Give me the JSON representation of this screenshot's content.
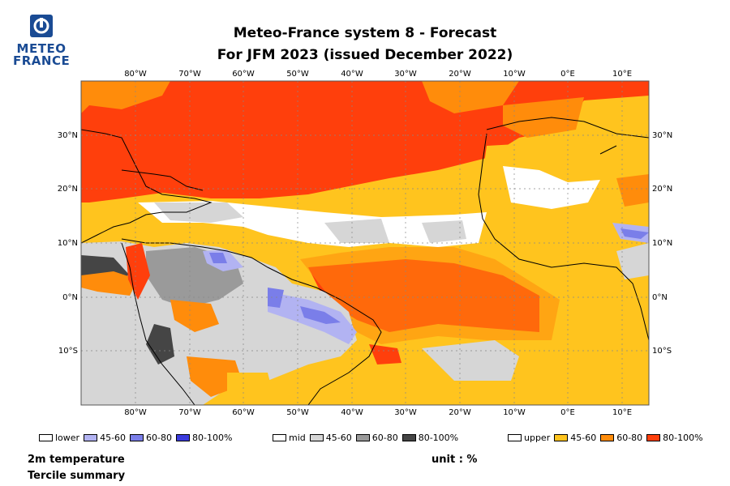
{
  "logo": {
    "line1": "METEO",
    "line2": "FRANCE",
    "icon": "meteo-france-logo-icon"
  },
  "title": {
    "line1": "Meteo-France system 8  -  Forecast",
    "line2": "For JFM 2023      (issued December 2022)"
  },
  "map": {
    "lon_labels": [
      "80°W",
      "70°W",
      "60°W",
      "50°W",
      "40°W",
      "30°W",
      "20°W",
      "10°W",
      "0°E",
      "10°E"
    ],
    "lat_labels": [
      "30°N",
      "20°N",
      "10°N",
      "0°N",
      "10°S"
    ],
    "colors": {
      "white": "#ffffff",
      "lower_45_60": "#b2b3f2",
      "lower_60_80": "#7a7ee9",
      "lower_80_100": "#3b3bdd",
      "mid_45_60": "#d6d6d6",
      "mid_60_80": "#9a9a9a",
      "mid_80_100": "#454545",
      "upper_45_60": "#ffc41e",
      "upper_60_80": "#ff8c0b",
      "upper_80_100": "#ff3f0c"
    }
  },
  "legend": {
    "lower": {
      "label": "lower",
      "bins": [
        "45-60",
        "60-80",
        "80-100%"
      ]
    },
    "mid": {
      "label": "mid",
      "bins": [
        "45-60",
        "60-80",
        "80-100%"
      ]
    },
    "upper": {
      "label": "upper",
      "bins": [
        "45-60",
        "60-80",
        "80-100%"
      ]
    }
  },
  "footer": {
    "variable": "2m temperature",
    "summary": "Tercile summary",
    "unit": "unit : %"
  }
}
